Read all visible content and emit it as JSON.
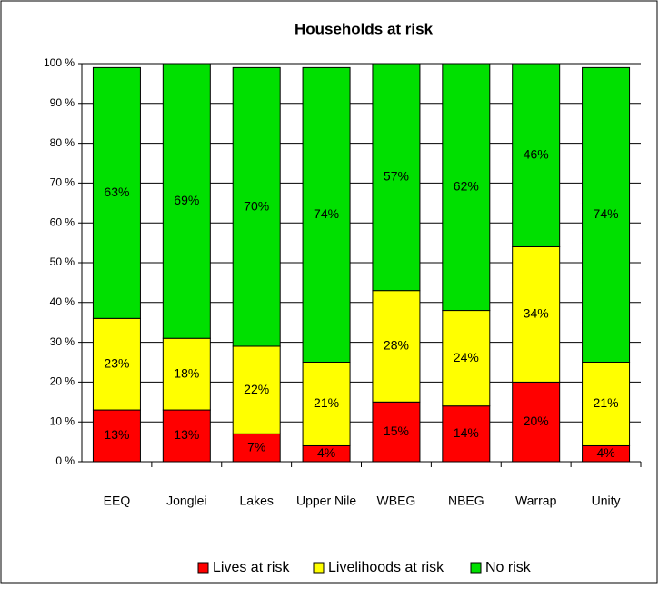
{
  "chart_data": {
    "type": "stacked_bar",
    "title": "Households at risk",
    "categories": [
      "EEQ",
      "Jonglei",
      "Lakes",
      "Upper Nile",
      "WBEG",
      "NBEG",
      "Warrap",
      "Unity"
    ],
    "series": [
      {
        "name": "Lives at risk",
        "color": "#ff0000",
        "values": [
          13,
          13,
          7,
          4,
          15,
          14,
          20,
          4
        ],
        "value_labels": [
          "13%",
          "13%",
          "7%",
          "4%",
          "15%",
          "14%",
          "20%",
          "4%"
        ]
      },
      {
        "name": "Livelihoods at risk",
        "color": "#ffff00",
        "values": [
          23,
          18,
          22,
          21,
          28,
          24,
          34,
          21
        ],
        "value_labels": [
          "23%",
          "18%",
          "22%",
          "21%",
          "28%",
          "24%",
          "34%",
          "21%"
        ]
      },
      {
        "name": "No risk",
        "color": "#00e000",
        "values": [
          63,
          69,
          70,
          74,
          57,
          62,
          46,
          74
        ],
        "value_labels": [
          "63%",
          "69%",
          "70%",
          "74%",
          "57%",
          "62%",
          "46%",
          "74%"
        ]
      }
    ],
    "ylim": [
      0,
      100
    ],
    "yticks": [
      {
        "value": 0,
        "label": "0 %"
      },
      {
        "value": 10,
        "label": "10 %"
      },
      {
        "value": 20,
        "label": "20 %"
      },
      {
        "value": 30,
        "label": "30 %"
      },
      {
        "value": 40,
        "label": "40 %"
      },
      {
        "value": 50,
        "label": "50 %"
      },
      {
        "value": 60,
        "label": "60 %"
      },
      {
        "value": 70,
        "label": "70 %"
      },
      {
        "value": 80,
        "label": "80 %"
      },
      {
        "value": 90,
        "label": "90 %"
      },
      {
        "value": 100,
        "label": "100 %"
      }
    ],
    "grid": true,
    "legend": "bottom"
  }
}
